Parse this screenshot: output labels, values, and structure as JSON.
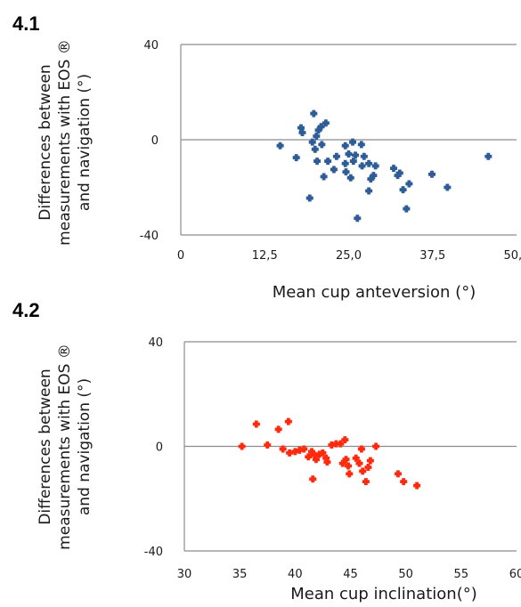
{
  "chart_data": [
    {
      "type": "scatter",
      "panel_label": "4.1",
      "xlabel": "Mean cup anteversion (°)",
      "ylabel": [
        "Differences between",
        "measurements with EOS ®",
        "and navigation  (°)"
      ],
      "xlim": [
        0,
        50
      ],
      "ylim": [
        -40,
        40
      ],
      "xticks": [
        "0",
        "12,5",
        "25,0",
        "37,5",
        "50,0"
      ],
      "xtick_values": [
        0,
        12.5,
        25,
        37.5,
        50
      ],
      "yticks": [
        "40",
        "0",
        "-40"
      ],
      "ytick_values": [
        40,
        0,
        -40
      ],
      "zero_line": true,
      "marker_color": "#2e5c96",
      "points": [
        [
          14.8,
          -2.5
        ],
        [
          17.2,
          -7.5
        ],
        [
          17.9,
          5
        ],
        [
          18.1,
          3
        ],
        [
          19.2,
          -24.5
        ],
        [
          19.8,
          11
        ],
        [
          19.6,
          -1
        ],
        [
          20.2,
          1.5
        ],
        [
          20.5,
          4
        ],
        [
          20.9,
          5.5
        ],
        [
          21.6,
          7
        ],
        [
          20.0,
          -4
        ],
        [
          20.3,
          -9
        ],
        [
          21.0,
          -2
        ],
        [
          21.9,
          -9
        ],
        [
          21.3,
          -15.5
        ],
        [
          22.8,
          -12.5
        ],
        [
          23.2,
          -7
        ],
        [
          24.5,
          -2.5
        ],
        [
          24.5,
          -10
        ],
        [
          24.6,
          -13.5
        ],
        [
          25.0,
          -6
        ],
        [
          25.3,
          -16
        ],
        [
          25.6,
          -1
        ],
        [
          25.7,
          -9
        ],
        [
          26.0,
          -6.5
        ],
        [
          26.3,
          -33
        ],
        [
          26.9,
          -2
        ],
        [
          27.0,
          -11
        ],
        [
          27.3,
          -7
        ],
        [
          28.0,
          -10
        ],
        [
          28.3,
          -16.5
        ],
        [
          28.0,
          -21.5
        ],
        [
          28.7,
          -15
        ],
        [
          29.0,
          -11
        ],
        [
          31.7,
          -12
        ],
        [
          32.3,
          -15
        ],
        [
          32.6,
          -14
        ],
        [
          33.1,
          -21
        ],
        [
          33.6,
          -29
        ],
        [
          34.0,
          -18.5
        ],
        [
          37.4,
          -14.5
        ],
        [
          39.7,
          -20
        ],
        [
          45.8,
          -7
        ]
      ]
    },
    {
      "type": "scatter",
      "panel_label": "4.2",
      "xlabel": "Mean cup inclination(°)",
      "ylabel": [
        "Differences between",
        "measurements with EOS ®",
        "and navigation (°)"
      ],
      "xlim": [
        30,
        60
      ],
      "ylim": [
        -40,
        40
      ],
      "xticks": [
        "30",
        "35",
        "40",
        "45",
        "50",
        "55",
        "60"
      ],
      "xtick_values": [
        30,
        35,
        40,
        45,
        50,
        55,
        60
      ],
      "yticks": [
        "40",
        "0",
        "-40"
      ],
      "ytick_values": [
        40,
        0,
        -40
      ],
      "zero_line": true,
      "marker_color": "#ff2a0e",
      "points": [
        [
          35.2,
          0
        ],
        [
          36.5,
          8.5
        ],
        [
          37.5,
          0.5
        ],
        [
          38.5,
          6.5
        ],
        [
          38.9,
          -1
        ],
        [
          39.4,
          9.5
        ],
        [
          39.5,
          -2.5
        ],
        [
          40.0,
          -2
        ],
        [
          40.4,
          -1.5
        ],
        [
          40.8,
          -1
        ],
        [
          41.2,
          -4
        ],
        [
          41.5,
          -2
        ],
        [
          41.6,
          -12.5
        ],
        [
          41.8,
          -3.5
        ],
        [
          41.9,
          -5
        ],
        [
          42.2,
          -3
        ],
        [
          42.5,
          -2.5
        ],
        [
          42.8,
          -4.5
        ],
        [
          42.9,
          -6
        ],
        [
          43.3,
          0.5
        ],
        [
          43.7,
          1
        ],
        [
          44.1,
          1
        ],
        [
          44.3,
          -6.5
        ],
        [
          44.5,
          2.5
        ],
        [
          44.6,
          -5
        ],
        [
          44.8,
          -7.5
        ],
        [
          44.9,
          -10.5
        ],
        [
          45.5,
          -4.5
        ],
        [
          45.8,
          -6.5
        ],
        [
          46.0,
          -1
        ],
        [
          46.1,
          -9.5
        ],
        [
          46.4,
          -13.5
        ],
        [
          46.6,
          -8
        ],
        [
          46.8,
          -5.5
        ],
        [
          47.3,
          0
        ],
        [
          49.3,
          -10.5
        ],
        [
          49.8,
          -13.5
        ],
        [
          51.0,
          -15
        ]
      ]
    }
  ]
}
